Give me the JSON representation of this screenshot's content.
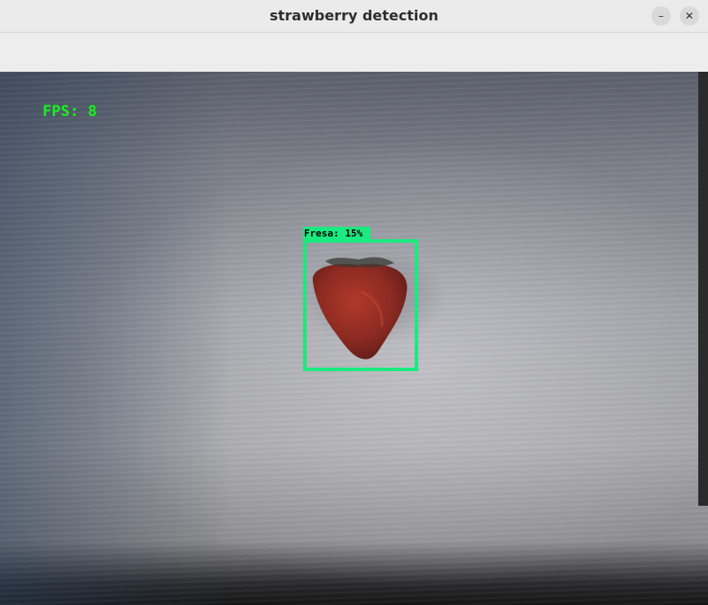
{
  "window": {
    "title": "strawberry detection",
    "minimize_glyph": "–",
    "close_glyph": "✕"
  },
  "overlay": {
    "fps_text": "FPS: 8"
  },
  "detection": {
    "label": "Fresa: 15%",
    "box_color": "#1aea80"
  },
  "colors": {
    "fps_color": "#19f01c"
  },
  "icons": {
    "minimize": "minimize-icon",
    "close": "close-icon"
  }
}
